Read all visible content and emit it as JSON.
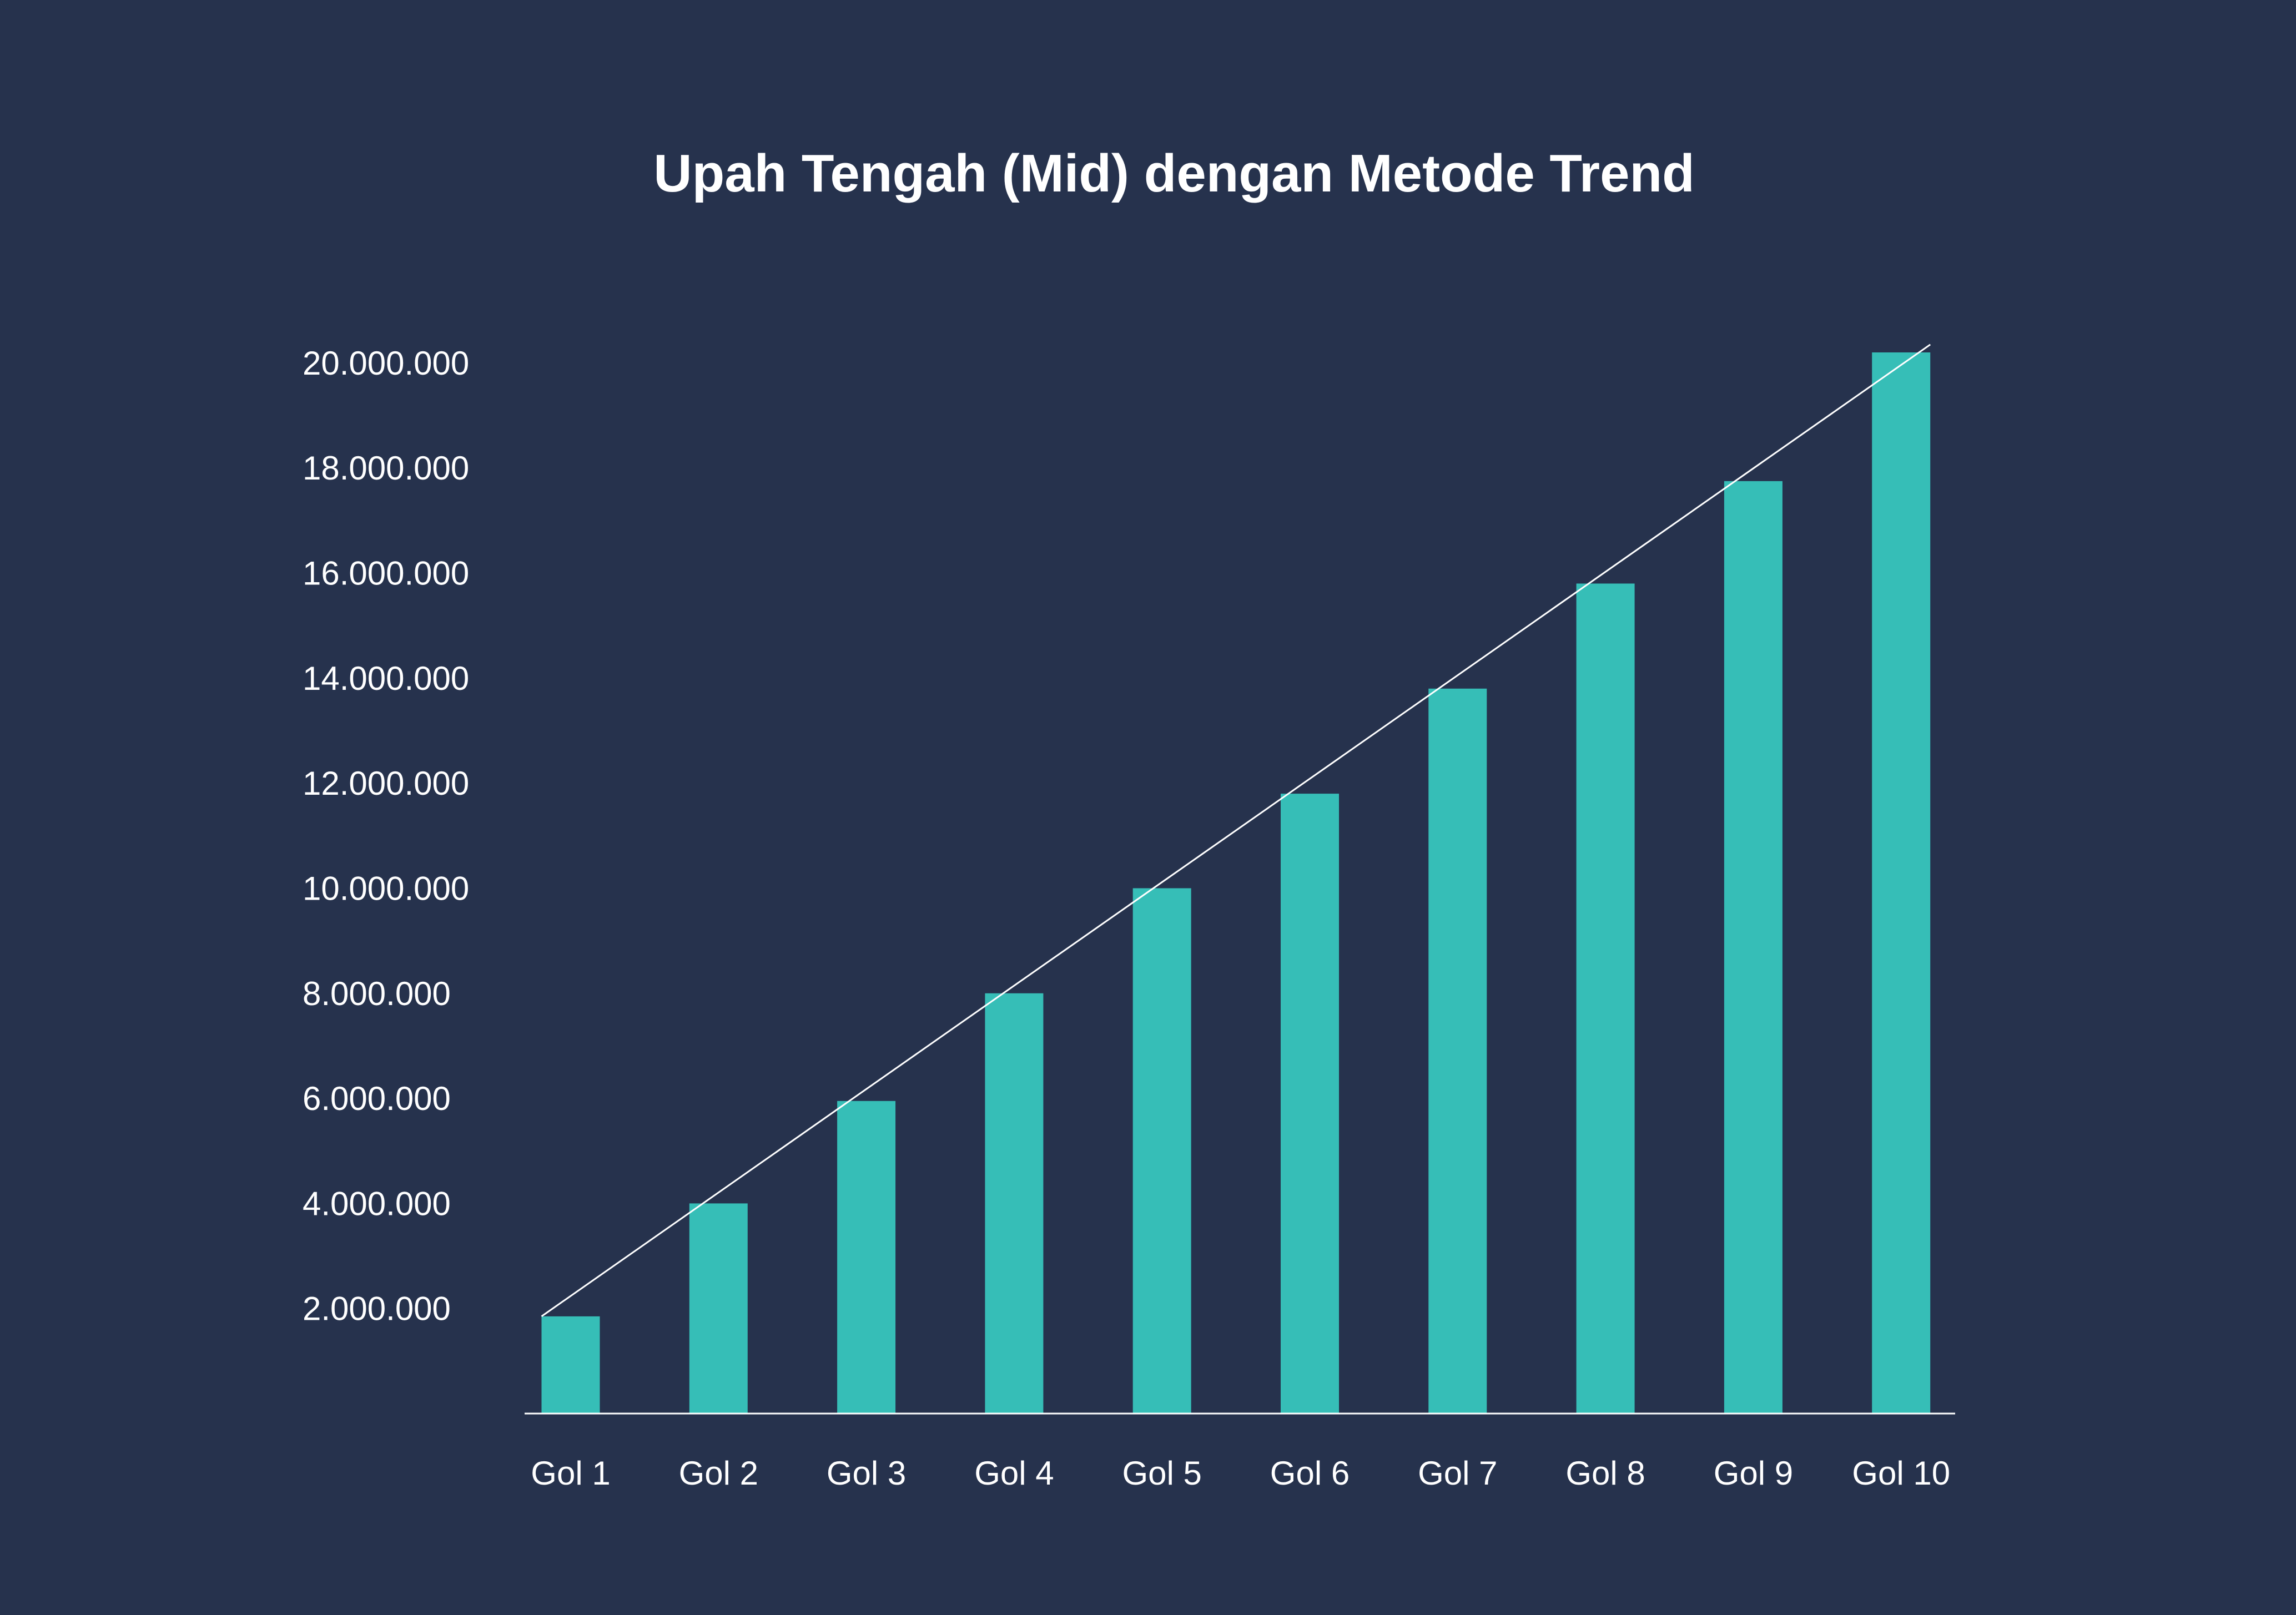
{
  "colors": {
    "background": "#26324d",
    "bar": "#36beb7",
    "trend_line": "#ffffff",
    "text": "#ffffff"
  },
  "chart_data": {
    "type": "bar",
    "title": "Upah Tengah (Mid) dengan Metode Trend",
    "xlabel": "",
    "ylabel": "",
    "categories": [
      "Gol 1",
      "Gol 2",
      "Gol 3",
      "Gol 4",
      "Gol 5",
      "Gol 6",
      "Gol 7",
      "Gol 8",
      "Gol 9",
      "Gol 10"
    ],
    "values": [
      1850000,
      4000000,
      5950000,
      8000000,
      10000000,
      11800000,
      13800000,
      15800000,
      17750000,
      20200000
    ],
    "y_ticks": [
      {
        "value": 2000000,
        "label": "2.000.000"
      },
      {
        "value": 4000000,
        "label": "4.000.000"
      },
      {
        "value": 6000000,
        "label": "6.000.000"
      },
      {
        "value": 8000000,
        "label": "8.000.000"
      },
      {
        "value": 10000000,
        "label": "10.000.000"
      },
      {
        "value": 12000000,
        "label": "12.000.000"
      },
      {
        "value": 14000000,
        "label": "14.000.000"
      },
      {
        "value": 16000000,
        "label": "16.000.000"
      },
      {
        "value": 18000000,
        "label": "18.000.000"
      },
      {
        "value": 20000000,
        "label": "20.000.000"
      }
    ],
    "ylim": [
      0,
      20200000
    ],
    "trend_line": {
      "start_value": 1850000,
      "end_value": 20350000
    },
    "grid": false,
    "legend": "none"
  }
}
